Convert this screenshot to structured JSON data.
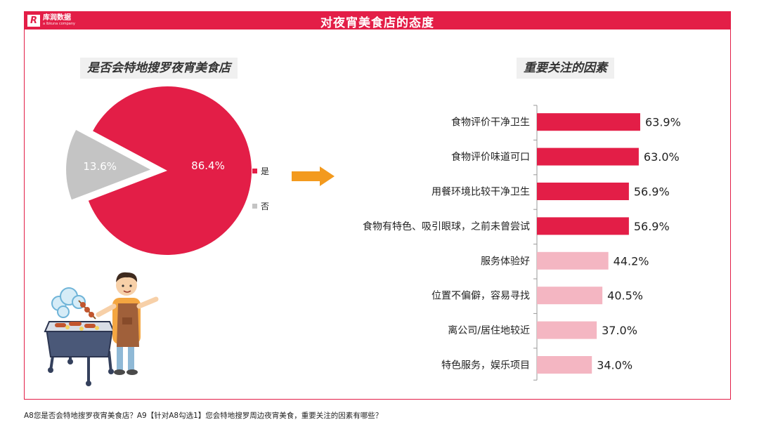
{
  "header": {
    "title": "对夜宵美食店的态度",
    "logo_cn": "库润数据",
    "logo_en": "a lbkuna company",
    "logo_mark": "R"
  },
  "colors": {
    "brand_red": "#e31e47",
    "light_pink": "#f4b6c2",
    "grey": "#c4c4c4",
    "arrow_orange": "#f39a1e"
  },
  "footnote": "A8您是否会特地搜罗夜宵美食店？A9【针对A8勾选1】您会特地搜罗周边夜宵美食，重要关注的因素有哪些？",
  "chart_data": [
    {
      "type": "pie",
      "title": "是否会特地搜罗夜宵美食店",
      "slices": [
        {
          "label": "是",
          "value": 86.4,
          "display": "86.4%",
          "color": "#e31e47"
        },
        {
          "label": "否",
          "value": 13.6,
          "display": "13.6%",
          "color": "#c4c4c4"
        }
      ],
      "legend_position": "right"
    },
    {
      "type": "bar",
      "orientation": "horizontal",
      "title": "重要关注的因素",
      "categories": [
        "食物评价干净卫生",
        "食物评价味道可口",
        "用餐环境比较干净卫生",
        "食物有特色、吸引眼球，之前未曾尝试",
        "服务体验好",
        "位置不偏僻，容易寻找",
        "离公司/居住地较近",
        "特色服务，娱乐项目"
      ],
      "values": [
        63.9,
        63.0,
        56.9,
        56.9,
        44.2,
        40.5,
        37.0,
        34.0
      ],
      "labels": [
        "63.9%",
        "63.0%",
        "56.9%",
        "56.9%",
        "44.2%",
        "40.5%",
        "37.0%",
        "34.0%"
      ],
      "highlight_count": 4,
      "xlim": [
        0,
        100
      ]
    }
  ]
}
